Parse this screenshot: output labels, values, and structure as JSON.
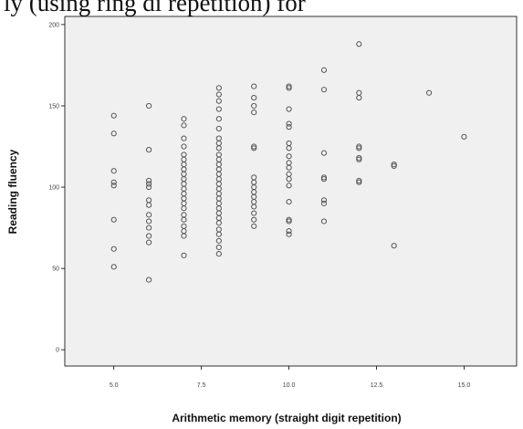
{
  "header_text": "ly (using ring di repetition) for",
  "chart_data": {
    "type": "scatter",
    "title": "",
    "xlabel": "Arithmetic memory (straight digit repetition)",
    "ylabel": "Reading fluency",
    "xlim": [
      3.6,
      16.5
    ],
    "ylim": [
      -10,
      205
    ],
    "xticks": [
      5.0,
      7.5,
      10.0,
      12.5,
      15.0
    ],
    "xtick_labels": [
      "5.0",
      "7.5",
      "10.0",
      "12.5",
      "15.0"
    ],
    "yticks": [
      0,
      50,
      100,
      150,
      200
    ],
    "ytick_labels": [
      "0",
      "50",
      "100",
      "150",
      "200"
    ],
    "grid": false,
    "legend": "none",
    "colors": {
      "plot_bg": "#f0f0f0",
      "marker": "#555555",
      "frame": "#000000"
    },
    "points": [
      {
        "x": 5,
        "y": 144
      },
      {
        "x": 5,
        "y": 133
      },
      {
        "x": 5,
        "y": 110
      },
      {
        "x": 5,
        "y": 103
      },
      {
        "x": 5,
        "y": 101
      },
      {
        "x": 5,
        "y": 80
      },
      {
        "x": 5,
        "y": 62
      },
      {
        "x": 5,
        "y": 51
      },
      {
        "x": 6,
        "y": 150
      },
      {
        "x": 6,
        "y": 123
      },
      {
        "x": 6,
        "y": 104
      },
      {
        "x": 6,
        "y": 102
      },
      {
        "x": 6,
        "y": 100
      },
      {
        "x": 6,
        "y": 92
      },
      {
        "x": 6,
        "y": 89
      },
      {
        "x": 6,
        "y": 83
      },
      {
        "x": 6,
        "y": 79
      },
      {
        "x": 6,
        "y": 75
      },
      {
        "x": 6,
        "y": 70
      },
      {
        "x": 6,
        "y": 66
      },
      {
        "x": 6,
        "y": 43
      },
      {
        "x": 7,
        "y": 142
      },
      {
        "x": 7,
        "y": 138
      },
      {
        "x": 7,
        "y": 130
      },
      {
        "x": 7,
        "y": 125
      },
      {
        "x": 7,
        "y": 120
      },
      {
        "x": 7,
        "y": 117
      },
      {
        "x": 7,
        "y": 114
      },
      {
        "x": 7,
        "y": 111
      },
      {
        "x": 7,
        "y": 108
      },
      {
        "x": 7,
        "y": 105
      },
      {
        "x": 7,
        "y": 102
      },
      {
        "x": 7,
        "y": 99
      },
      {
        "x": 7,
        "y": 96
      },
      {
        "x": 7,
        "y": 93
      },
      {
        "x": 7,
        "y": 90
      },
      {
        "x": 7,
        "y": 87
      },
      {
        "x": 7,
        "y": 83
      },
      {
        "x": 7,
        "y": 80
      },
      {
        "x": 7,
        "y": 76
      },
      {
        "x": 7,
        "y": 73
      },
      {
        "x": 7,
        "y": 70
      },
      {
        "x": 7,
        "y": 58
      },
      {
        "x": 8,
        "y": 161
      },
      {
        "x": 8,
        "y": 157
      },
      {
        "x": 8,
        "y": 153
      },
      {
        "x": 8,
        "y": 148
      },
      {
        "x": 8,
        "y": 142
      },
      {
        "x": 8,
        "y": 136
      },
      {
        "x": 8,
        "y": 130
      },
      {
        "x": 8,
        "y": 127
      },
      {
        "x": 8,
        "y": 124
      },
      {
        "x": 8,
        "y": 120
      },
      {
        "x": 8,
        "y": 117
      },
      {
        "x": 8,
        "y": 114
      },
      {
        "x": 8,
        "y": 111
      },
      {
        "x": 8,
        "y": 108
      },
      {
        "x": 8,
        "y": 105
      },
      {
        "x": 8,
        "y": 102
      },
      {
        "x": 8,
        "y": 99
      },
      {
        "x": 8,
        "y": 96
      },
      {
        "x": 8,
        "y": 93
      },
      {
        "x": 8,
        "y": 90
      },
      {
        "x": 8,
        "y": 87
      },
      {
        "x": 8,
        "y": 84
      },
      {
        "x": 8,
        "y": 81
      },
      {
        "x": 8,
        "y": 78
      },
      {
        "x": 8,
        "y": 74
      },
      {
        "x": 8,
        "y": 71
      },
      {
        "x": 8,
        "y": 67
      },
      {
        "x": 8,
        "y": 63
      },
      {
        "x": 8,
        "y": 59
      },
      {
        "x": 9,
        "y": 162
      },
      {
        "x": 9,
        "y": 155
      },
      {
        "x": 9,
        "y": 150
      },
      {
        "x": 9,
        "y": 146
      },
      {
        "x": 9,
        "y": 125
      },
      {
        "x": 9,
        "y": 124
      },
      {
        "x": 9,
        "y": 106
      },
      {
        "x": 9,
        "y": 103
      },
      {
        "x": 9,
        "y": 100
      },
      {
        "x": 9,
        "y": 97
      },
      {
        "x": 9,
        "y": 94
      },
      {
        "x": 9,
        "y": 91
      },
      {
        "x": 9,
        "y": 88
      },
      {
        "x": 9,
        "y": 84
      },
      {
        "x": 9,
        "y": 80
      },
      {
        "x": 9,
        "y": 76
      },
      {
        "x": 10,
        "y": 162
      },
      {
        "x": 10,
        "y": 161
      },
      {
        "x": 10,
        "y": 148
      },
      {
        "x": 10,
        "y": 139
      },
      {
        "x": 10,
        "y": 137
      },
      {
        "x": 10,
        "y": 127
      },
      {
        "x": 10,
        "y": 124
      },
      {
        "x": 10,
        "y": 119
      },
      {
        "x": 10,
        "y": 115
      },
      {
        "x": 10,
        "y": 112
      },
      {
        "x": 10,
        "y": 108
      },
      {
        "x": 10,
        "y": 105
      },
      {
        "x": 10,
        "y": 101
      },
      {
        "x": 10,
        "y": 91
      },
      {
        "x": 10,
        "y": 80
      },
      {
        "x": 10,
        "y": 79
      },
      {
        "x": 10,
        "y": 73
      },
      {
        "x": 10,
        "y": 71
      },
      {
        "x": 11,
        "y": 172
      },
      {
        "x": 11,
        "y": 160
      },
      {
        "x": 11,
        "y": 121
      },
      {
        "x": 11,
        "y": 106
      },
      {
        "x": 11,
        "y": 105
      },
      {
        "x": 11,
        "y": 92
      },
      {
        "x": 11,
        "y": 90
      },
      {
        "x": 11,
        "y": 79
      },
      {
        "x": 12,
        "y": 188
      },
      {
        "x": 12,
        "y": 158
      },
      {
        "x": 12,
        "y": 155
      },
      {
        "x": 12,
        "y": 125
      },
      {
        "x": 12,
        "y": 124
      },
      {
        "x": 12,
        "y": 118
      },
      {
        "x": 12,
        "y": 117
      },
      {
        "x": 12,
        "y": 104
      },
      {
        "x": 12,
        "y": 103
      },
      {
        "x": 13,
        "y": 114
      },
      {
        "x": 13,
        "y": 113
      },
      {
        "x": 13,
        "y": 64
      },
      {
        "x": 14,
        "y": 158
      },
      {
        "x": 15,
        "y": 131
      }
    ]
  }
}
